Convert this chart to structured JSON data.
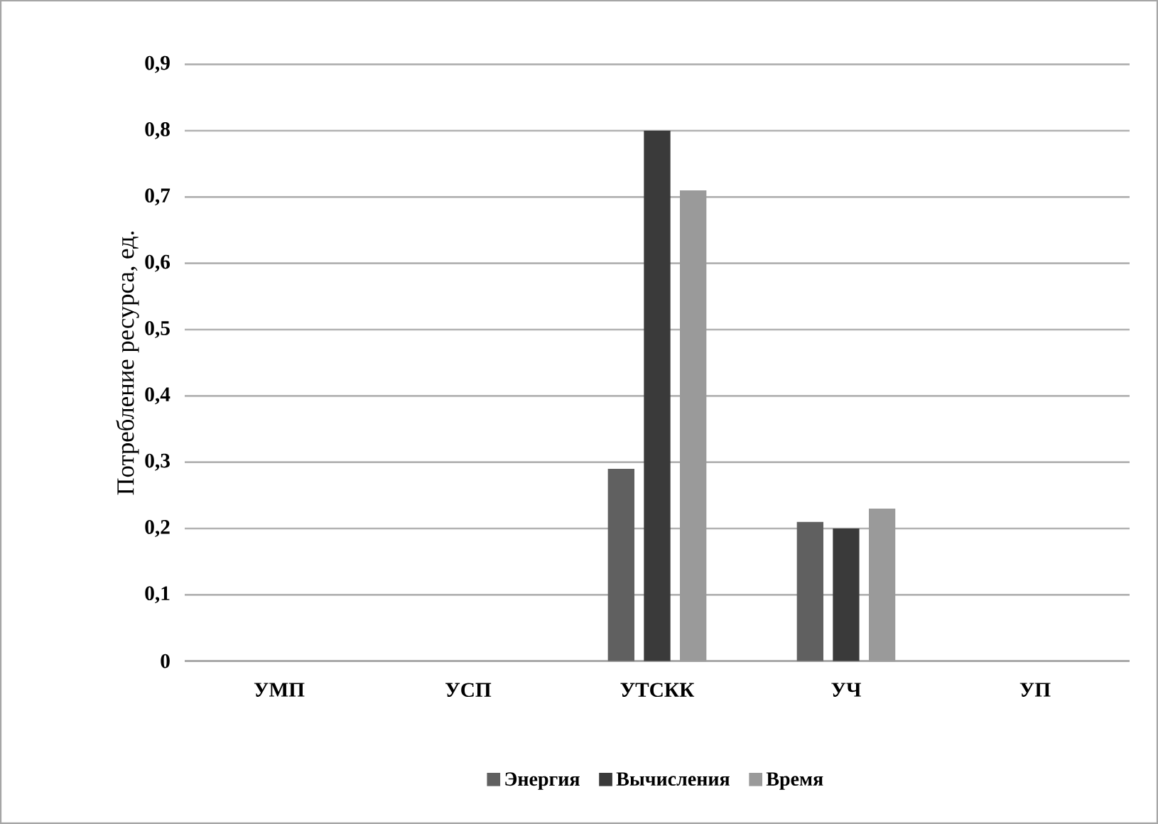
{
  "chart_data": {
    "type": "bar",
    "ylabel": "Потребление ресурса,  ед.",
    "categories": [
      "УМП",
      "УСП",
      "УТСКК",
      "УЧ",
      "УП"
    ],
    "series": [
      {
        "name": "Энергия",
        "color": "#606060",
        "values": [
          null,
          null,
          0.29,
          0.21,
          null
        ]
      },
      {
        "name": "Вычисления",
        "color": "#3a3a3a",
        "values": [
          null,
          null,
          0.8,
          0.2,
          null
        ]
      },
      {
        "name": "Время",
        "color": "#9a9a9a",
        "values": [
          null,
          null,
          0.71,
          0.23,
          null
        ]
      }
    ],
    "ylim": [
      0,
      0.9
    ],
    "yticks": [
      {
        "value": 0,
        "label": "0"
      },
      {
        "value": 0.1,
        "label": "0,1"
      },
      {
        "value": 0.2,
        "label": "0,2"
      },
      {
        "value": 0.3,
        "label": "0,3"
      },
      {
        "value": 0.4,
        "label": "0,4"
      },
      {
        "value": 0.5,
        "label": "0,5"
      },
      {
        "value": 0.6,
        "label": "0,6"
      },
      {
        "value": 0.7,
        "label": "0,7"
      },
      {
        "value": 0.8,
        "label": "0,8"
      },
      {
        "value": 0.9,
        "label": "0,9"
      }
    ],
    "grid": "y",
    "legend": "bottom"
  }
}
